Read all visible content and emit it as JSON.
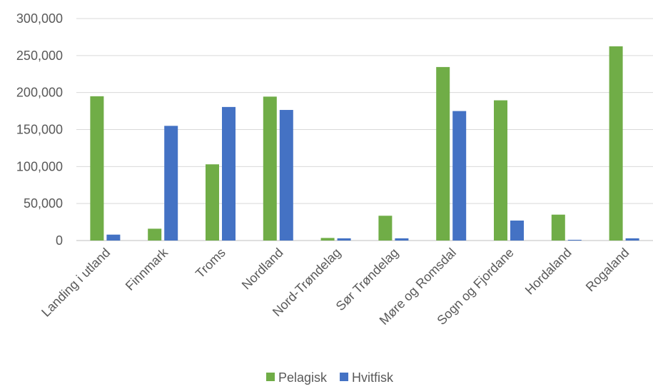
{
  "chart_data": {
    "type": "bar",
    "title": "",
    "xlabel": "",
    "ylabel": "",
    "ylim": [
      0,
      300000
    ],
    "yticks": [
      0,
      50000,
      100000,
      150000,
      200000,
      250000,
      300000
    ],
    "ytick_labels": [
      "0",
      "50,000",
      "100,000",
      "150,000",
      "200,000",
      "250,000",
      "300,000"
    ],
    "grid": true,
    "legend_position": "bottom",
    "categories": [
      "Landing i utland",
      "Finnmark",
      "Troms",
      "Nordland",
      "Nord-Trøndelag",
      "Sør Trøndelag",
      "Møre og Romsdal",
      "Sogn og Fjordane",
      "Hordaland",
      "Rogaland"
    ],
    "series": [
      {
        "name": "Pelagisk",
        "color": "#70ad47",
        "values": [
          195000,
          16000,
          103000,
          194500,
          3500,
          33500,
          234500,
          189500,
          35000,
          262500
        ]
      },
      {
        "name": "Hvitfisk",
        "color": "#4472c4",
        "values": [
          8000,
          155000,
          180500,
          176500,
          3000,
          3000,
          175000,
          27000,
          1000,
          3000
        ]
      }
    ]
  }
}
